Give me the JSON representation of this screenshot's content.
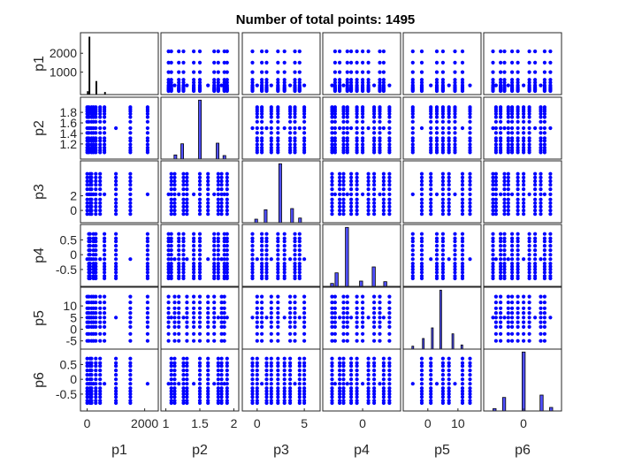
{
  "chart_data": {
    "type": "scatter",
    "title": "Number of total points: 1495",
    "variables": [
      "p1",
      "p2",
      "p3",
      "p4",
      "p5",
      "p6"
    ],
    "marker_color": "#0000ff",
    "hist_color": "#5050ff",
    "hist_edge": "#000000",
    "diag_hist_p1_color": "#000000",
    "grid": false,
    "axes": {
      "p1": {
        "lim": [
          -110,
          2350
        ],
        "ticks": [
          0,
          2000
        ],
        "tick_labels": [
          "0",
          "2000"
        ],
        "ylim": [
          0,
          2900
        ],
        "yticks": [
          1000,
          2000
        ],
        "ytick_labels": [
          "1000",
          "2000"
        ]
      },
      "p2": {
        "lim": [
          0.98,
          2.02
        ],
        "ticks": [
          1,
          1.5,
          2
        ],
        "tick_labels": [
          "1",
          "1.5",
          "2"
        ],
        "yticks": [
          1.2,
          1.4,
          1.6,
          1.8
        ],
        "ytick_labels": [
          "1.2",
          "1.4",
          "1.6",
          "1.8"
        ]
      },
      "p3": {
        "lim": [
          -1.2,
          6.3
        ],
        "ticks": [
          0,
          5
        ],
        "tick_labels": [
          "0",
          "5"
        ],
        "yticks": [
          0,
          2
        ],
        "ytick_labels": [
          "0",
          "2"
        ]
      },
      "p4": {
        "lim": [
          -0.95,
          0.9
        ],
        "ticks": [
          0
        ],
        "tick_labels": [
          "0"
        ],
        "yticks": [
          -0.5,
          0,
          0.5
        ],
        "ytick_labels": [
          "-0.5",
          "0",
          "0.5"
        ]
      },
      "p5": {
        "lim": [
          -7,
          16.5
        ],
        "ticks": [
          0,
          10
        ],
        "tick_labels": [
          "0",
          "10"
        ],
        "yticks": [
          -5,
          0,
          5,
          10
        ],
        "ytick_labels": [
          "-5",
          "0",
          "5",
          "10"
        ]
      },
      "p6": {
        "lim": [
          -0.95,
          0.9
        ],
        "ticks": [
          0
        ],
        "tick_labels": [
          "0"
        ],
        "yticks": [
          -0.5,
          0,
          0.5
        ],
        "ytick_labels": [
          "-0.5",
          "0",
          "0.5"
        ]
      }
    },
    "levels": {
      "p1": [
        0,
        60,
        100,
        150,
        220,
        300,
        450,
        600,
        1000,
        1500,
        2100
      ],
      "p2": [
        1.04,
        1.08,
        1.13,
        1.19,
        1.26,
        1.31,
        1.41,
        1.5,
        1.62,
        1.71,
        1.77,
        1.82,
        1.86,
        1.9
      ],
      "p3": [
        -0.5,
        0,
        0.5,
        1,
        1.5,
        2.2,
        2.9,
        3.5,
        4,
        4.5,
        5
      ],
      "p4": [
        -0.8,
        -0.72,
        -0.6,
        -0.5,
        -0.4,
        -0.3,
        -0.15,
        0,
        0.15,
        0.3,
        0.45,
        0.55,
        0.7
      ],
      "p5": [
        -5,
        -2,
        1,
        3,
        5,
        7,
        9,
        11.5,
        14
      ],
      "p6": [
        -0.8,
        -0.72,
        -0.6,
        -0.5,
        -0.4,
        -0.3,
        -0.15,
        0,
        0.15,
        0.3,
        0.45,
        0.55,
        0.7
      ]
    },
    "histograms": {
      "p1": {
        "bins": [
          [
            0,
            40
          ],
          [
            60,
            100
          ],
          [
            300,
            340
          ],
          [
            600,
            640
          ]
        ],
        "counts": [
          150,
          2780,
          640,
          110
        ],
        "ylim": [
          0,
          2900
        ]
      },
      "p2": {
        "bins": [
          [
            1.12,
            1.16
          ],
          [
            1.22,
            1.26
          ],
          [
            1.48,
            1.52
          ],
          [
            1.74,
            1.78
          ],
          [
            1.84,
            1.88
          ]
        ],
        "counts": [
          70,
          260,
          1000,
          270,
          60
        ],
        "ylim": [
          0,
          1020
        ]
      },
      "p3": {
        "bins": [
          [
            -0.25,
            0.05
          ],
          [
            0.75,
            1.05
          ],
          [
            2.3,
            2.6
          ],
          [
            3.55,
            3.85
          ],
          [
            4.4,
            4.7
          ]
        ],
        "counts": [
          60,
          220,
          1000,
          240,
          80
        ],
        "ylim": [
          0,
          1020
        ]
      },
      "p4": {
        "bins": [
          [
            -0.84,
            -0.76
          ],
          [
            -0.72,
            -0.64
          ],
          [
            -0.45,
            -0.37
          ],
          [
            -0.08,
            0.0
          ],
          [
            0.25,
            0.33
          ],
          [
            0.55,
            0.63
          ]
        ],
        "counts": [
          50,
          230,
          1000,
          90,
          330,
          80
        ],
        "ylim": [
          0,
          1020
        ]
      },
      "p5": {
        "bins": [
          [
            -5.3,
            -4.7
          ],
          [
            -1.8,
            -1.2
          ],
          [
            1.2,
            1.8
          ],
          [
            4.0,
            4.6
          ],
          [
            8.0,
            8.6
          ],
          [
            11.0,
            11.6
          ]
        ],
        "counts": [
          50,
          180,
          360,
          1000,
          260,
          70
        ],
        "ylim": [
          0,
          1020
        ]
      },
      "p6": {
        "bins": [
          [
            -0.8,
            -0.72
          ],
          [
            -0.55,
            -0.47
          ],
          [
            -0.04,
            0.04
          ],
          [
            0.43,
            0.51
          ],
          [
            0.68,
            0.76
          ]
        ],
        "counts": [
          40,
          230,
          1000,
          270,
          60
        ],
        "ylim": [
          0,
          1020
        ]
      }
    }
  }
}
